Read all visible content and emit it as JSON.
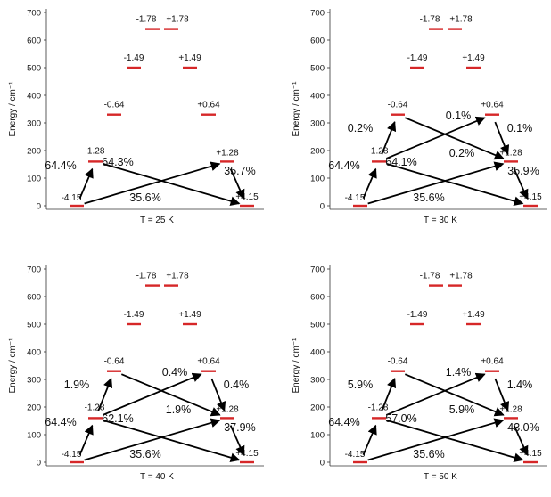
{
  "colors": {
    "level": "#d62728",
    "arrow": "#000000",
    "axis": "#333333"
  },
  "y_axis_label": "Energy / cm⁻¹",
  "y_ticks": [
    "0",
    "100",
    "200",
    "300",
    "400",
    "500",
    "600",
    "700"
  ],
  "ylim": [
    0,
    700
  ],
  "levels": [
    {
      "label": "-4.15",
      "energy": 0
    },
    {
      "label": "-1.28",
      "energy": 160
    },
    {
      "label": "-0.64",
      "energy": 330
    },
    {
      "label": "-1.49",
      "energy": 500
    },
    {
      "label": "-1.78",
      "energy": 640
    },
    {
      "label": "+1.78",
      "energy": 640
    },
    {
      "label": "+1.49",
      "energy": 500
    },
    {
      "label": "+0.64",
      "energy": 330
    },
    {
      "label": "+1.28",
      "energy": 160
    },
    {
      "label": "+4.15",
      "energy": 0
    }
  ],
  "panels": [
    {
      "title": "T = 25 K",
      "transitions": [
        {
          "from": "-4.15",
          "to": "-1.28",
          "percent": "64.4%"
        },
        {
          "from": "-1.28",
          "to": "+4.15",
          "percent": "64.3%"
        },
        {
          "from": "-4.15",
          "to": "+1.28",
          "percent": "35.6%"
        },
        {
          "from": "+1.28",
          "to": "+4.15",
          "percent": "35.7%"
        }
      ]
    },
    {
      "title": "T = 30 K",
      "transitions": [
        {
          "from": "-4.15",
          "to": "-1.28",
          "percent": "64.4%"
        },
        {
          "from": "-1.28",
          "to": "-0.64",
          "percent": "0.2%"
        },
        {
          "from": "-1.28",
          "to": "+0.64",
          "percent": "0.1%"
        },
        {
          "from": "+0.64",
          "to": "+1.28",
          "percent": "0.1%"
        },
        {
          "from": "-0.64",
          "to": "+1.28",
          "percent": "0.2%"
        },
        {
          "from": "-1.28",
          "to": "+4.15",
          "percent": "64.1%"
        },
        {
          "from": "+1.28",
          "to": "+4.15",
          "percent": "35.9%"
        },
        {
          "from": "-4.15",
          "to": "+1.28",
          "percent": "35.6%"
        }
      ]
    },
    {
      "title": "T = 40 K",
      "transitions": [
        {
          "from": "-4.15",
          "to": "-1.28",
          "percent": "64.4%"
        },
        {
          "from": "-1.28",
          "to": "-0.64",
          "percent": "1.9%"
        },
        {
          "from": "-1.28",
          "to": "+0.64",
          "percent": "0.4%"
        },
        {
          "from": "+0.64",
          "to": "+1.28",
          "percent": "0.4%"
        },
        {
          "from": "-0.64",
          "to": "+1.28",
          "percent": "1.9%"
        },
        {
          "from": "-1.28",
          "to": "+4.15",
          "percent": "62.1%"
        },
        {
          "from": "+1.28",
          "to": "+4.15",
          "percent": "37.9%"
        },
        {
          "from": "-4.15",
          "to": "+1.28",
          "percent": "35.6%"
        }
      ]
    },
    {
      "title": "T = 50 K",
      "transitions": [
        {
          "from": "-4.15",
          "to": "-1.28",
          "percent": "64.4%"
        },
        {
          "from": "-1.28",
          "to": "-0.64",
          "percent": "5.9%"
        },
        {
          "from": "-1.28",
          "to": "+0.64",
          "percent": "1.4%"
        },
        {
          "from": "+0.64",
          "to": "+1.28",
          "percent": "1.4%"
        },
        {
          "from": "-0.64",
          "to": "+1.28",
          "percent": "5.9%"
        },
        {
          "from": "-1.28",
          "to": "+4.15",
          "percent": "57.0%"
        },
        {
          "from": "+1.28",
          "to": "+4.15",
          "percent": "43.0%"
        },
        {
          "from": "-4.15",
          "to": "+1.28",
          "percent": "35.6%"
        }
      ]
    }
  ]
}
